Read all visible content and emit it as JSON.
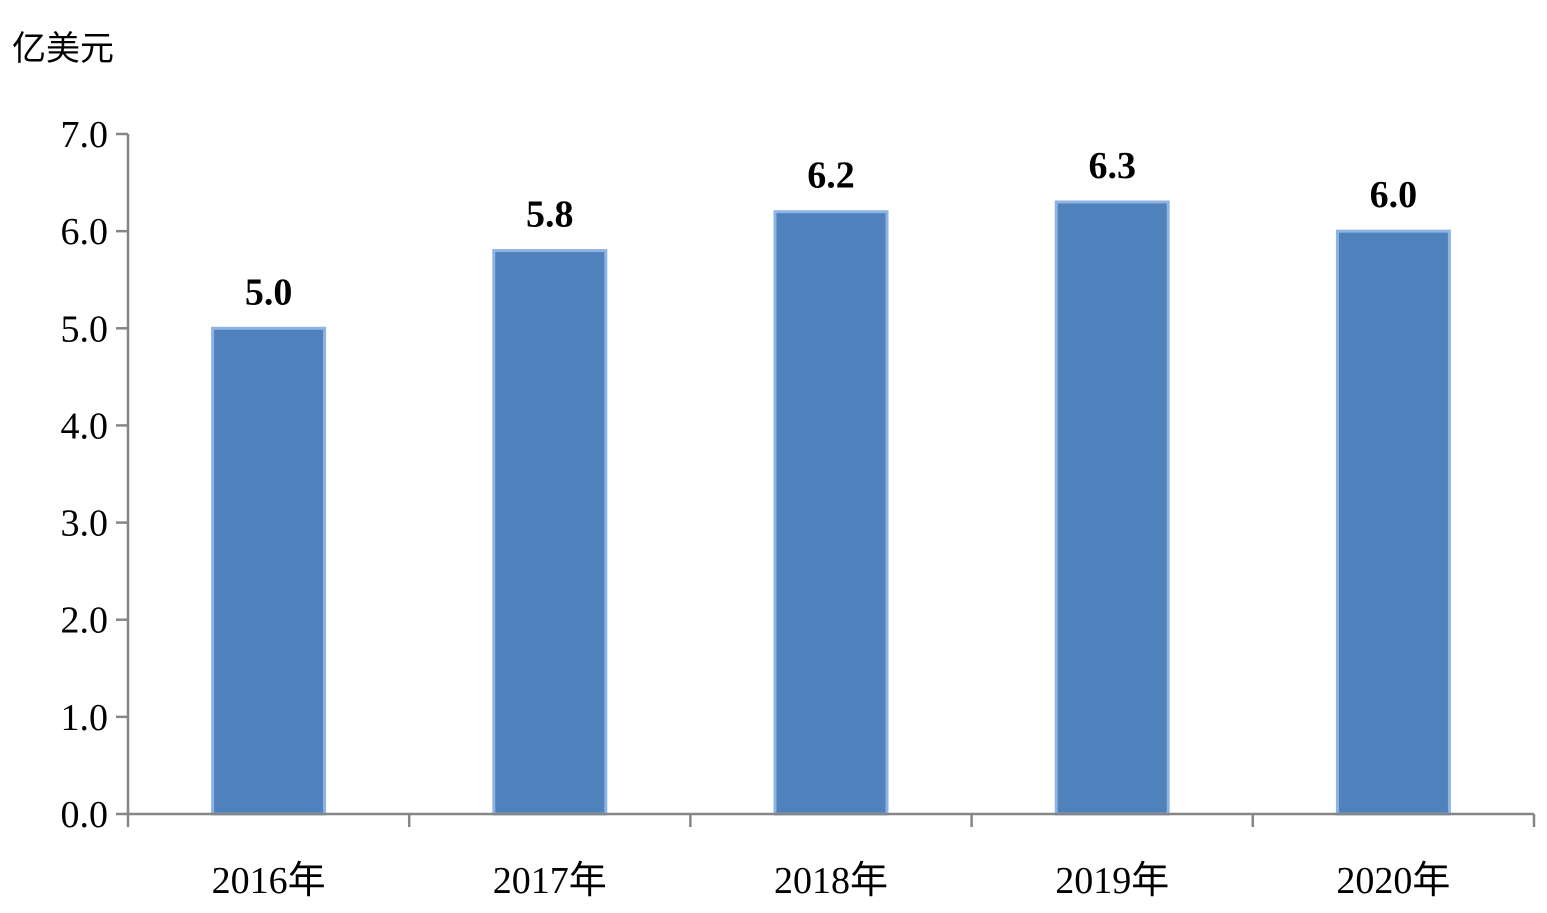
{
  "chart_data": {
    "type": "bar",
    "ylabel": "亿美元",
    "categories": [
      "2016年",
      "2017年",
      "2018年",
      "2019年",
      "2020年"
    ],
    "values": [
      5.0,
      5.8,
      6.2,
      6.3,
      6.0
    ],
    "value_labels": [
      "5.0",
      "5.8",
      "6.2",
      "6.3",
      "6.0"
    ],
    "yticks": [
      "0.0",
      "1.0",
      "2.0",
      "3.0",
      "4.0",
      "5.0",
      "6.0",
      "7.0"
    ],
    "ylim": [
      0,
      7
    ],
    "grid": false,
    "colors": {
      "bar": "#4F81BD",
      "bar_edge": "#8EB4E3",
      "axis": "#868686"
    }
  }
}
